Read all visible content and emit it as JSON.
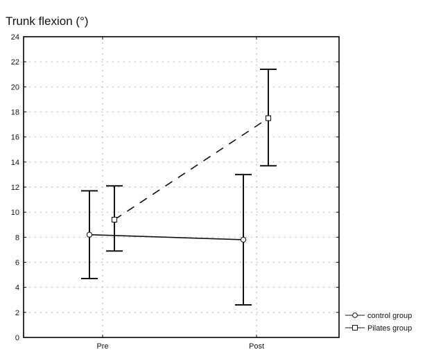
{
  "chart_data": {
    "type": "line",
    "title": "Trunk flexion",
    "title_unit": "(°)",
    "xlabel": "",
    "ylabel": "",
    "categories": [
      "Pre",
      "Post"
    ],
    "ylim": [
      0,
      24
    ],
    "yticks": [
      0,
      2,
      4,
      6,
      8,
      10,
      12,
      14,
      16,
      18,
      20,
      22,
      24
    ],
    "grid": true,
    "legend_position": "bottom-right",
    "series": [
      {
        "name": "control group",
        "marker": "circle",
        "line_style": "solid",
        "values": [
          8.2,
          7.8
        ],
        "error_low": [
          4.7,
          2.6
        ],
        "error_high": [
          11.7,
          13.0
        ]
      },
      {
        "name": "Pilates group",
        "marker": "square",
        "line_style": "dashed",
        "values": [
          9.4,
          17.5
        ],
        "error_low": [
          6.9,
          13.7
        ],
        "error_high": [
          12.1,
          21.4
        ]
      }
    ]
  }
}
